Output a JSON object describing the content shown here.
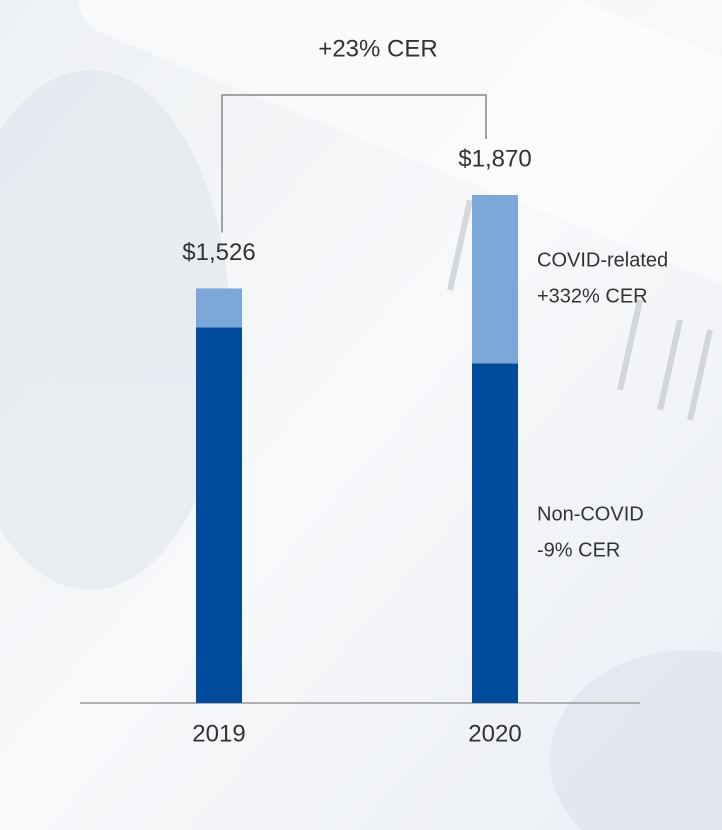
{
  "chart_data": {
    "type": "stacked-bar",
    "categories": [
      "2019",
      "2020"
    ],
    "series": [
      {
        "name": "Non-COVID",
        "change": "-9% CER",
        "color": "#004b9c",
        "values": [
          1383,
          1250
        ]
      },
      {
        "name": "COVID-related",
        "change": "+332% CER",
        "color": "#7ba7d9",
        "values": [
          143,
          620
        ]
      }
    ],
    "totals": {
      "values": [
        1526,
        1870
      ],
      "value_labels": [
        "$1,526",
        "$1,870"
      ]
    },
    "growth_annotation": "+23% CER"
  }
}
